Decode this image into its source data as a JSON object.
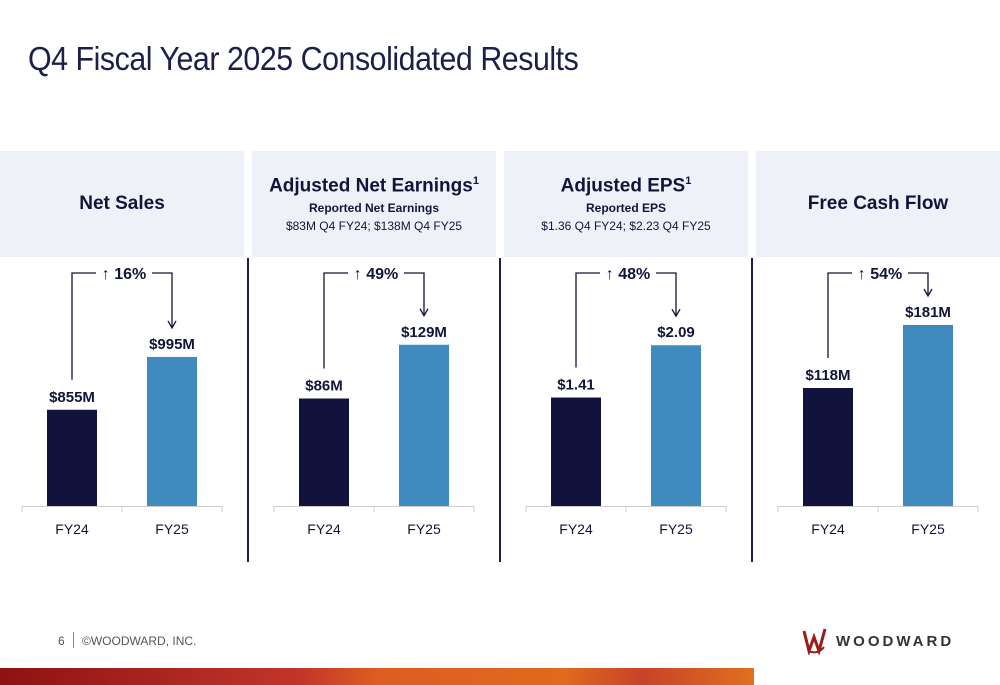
{
  "title": "Q4 Fiscal Year 2025 Consolidated Results",
  "colors": {
    "fy24": "#12133d",
    "fy25": "#3f8abf",
    "header_bg": "#eef2f8",
    "accent_band": "#d9531e"
  },
  "chart_data": [
    {
      "type": "bar",
      "title": "Net Sales",
      "categories": [
        "FY24",
        "FY25"
      ],
      "values": [
        855,
        995
      ],
      "data_labels": [
        "$855M",
        "$995M"
      ],
      "change": "16%",
      "ylim": [
        600,
        1130
      ],
      "unit": "$M"
    },
    {
      "type": "bar",
      "title": "Adjusted Net Earnings",
      "footnote": "1",
      "subtitle": "Reported Net Earnings",
      "subtitle2": "$83M Q4 FY24; $138M Q4 FY25",
      "categories": [
        "FY24",
        "FY25"
      ],
      "values": [
        86,
        129
      ],
      "data_labels": [
        "$86M",
        "$129M"
      ],
      "change": "49%",
      "ylim": [
        0,
        160
      ],
      "unit": "$M"
    },
    {
      "type": "bar",
      "title": "Adjusted EPS",
      "footnote": "1",
      "subtitle": "Reported EPS",
      "subtitle2": "$1.36 Q4 FY24; $2.23 Q4 FY25",
      "categories": [
        "FY24",
        "FY25"
      ],
      "values": [
        1.41,
        2.09
      ],
      "data_labels": [
        "$1.41",
        "$2.09"
      ],
      "change": "48%",
      "ylim": [
        0,
        2.6
      ],
      "unit": "$"
    },
    {
      "type": "bar",
      "title": "Free Cash Flow",
      "categories": [
        "FY24",
        "FY25"
      ],
      "values": [
        118,
        181
      ],
      "data_labels": [
        "$118M",
        "$181M"
      ],
      "change": "54%",
      "ylim": [
        0,
        200
      ],
      "unit": "$M"
    }
  ],
  "footer": {
    "page": "6",
    "copyright": "©WOODWARD, INC.",
    "logo": "WOODWARD"
  }
}
